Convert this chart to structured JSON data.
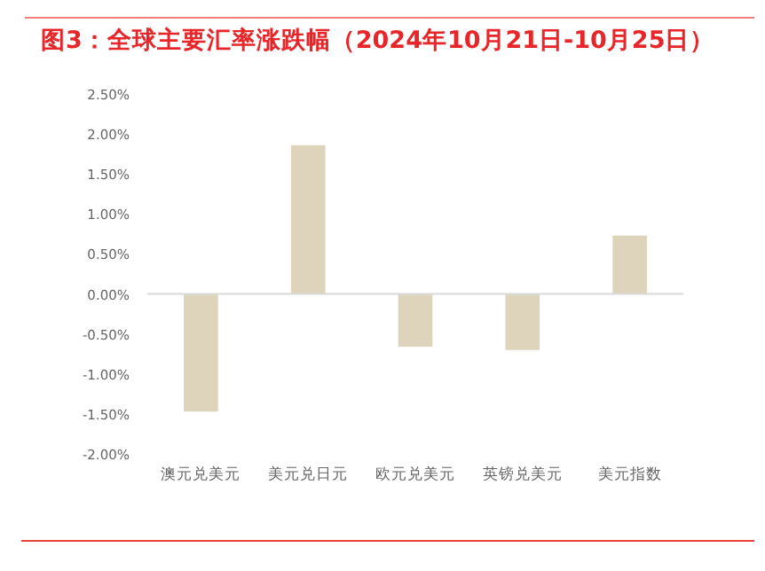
{
  "chart_data": {
    "type": "bar",
    "title": "图3：全球主要汇率涨跌幅（2024年10月21日-10月25日）",
    "categories": [
      "澳元兑美元",
      "美元兑日元",
      "欧元兑美元",
      "英镑兑美元",
      "美元指数"
    ],
    "values": [
      -1.47,
      1.86,
      -0.66,
      -0.7,
      0.73
    ],
    "color": "#ded4bc",
    "ylim": [
      -2,
      2.5
    ],
    "yticks": [
      {
        "value": -2,
        "label": "-2.00%"
      },
      {
        "value": -1.5,
        "label": "-1.50%"
      },
      {
        "value": -1,
        "label": "-1.00%"
      },
      {
        "value": -0.5,
        "label": "-0.50%"
      },
      {
        "value": 0,
        "label": "0.00%"
      },
      {
        "value": 0.5,
        "label": "0.50%"
      },
      {
        "value": 1,
        "label": "1.00%"
      },
      {
        "value": 1.5,
        "label": "1.50%"
      },
      {
        "value": 2,
        "label": "2.00%"
      },
      {
        "value": 2.5,
        "label": "2.50%"
      }
    ]
  }
}
